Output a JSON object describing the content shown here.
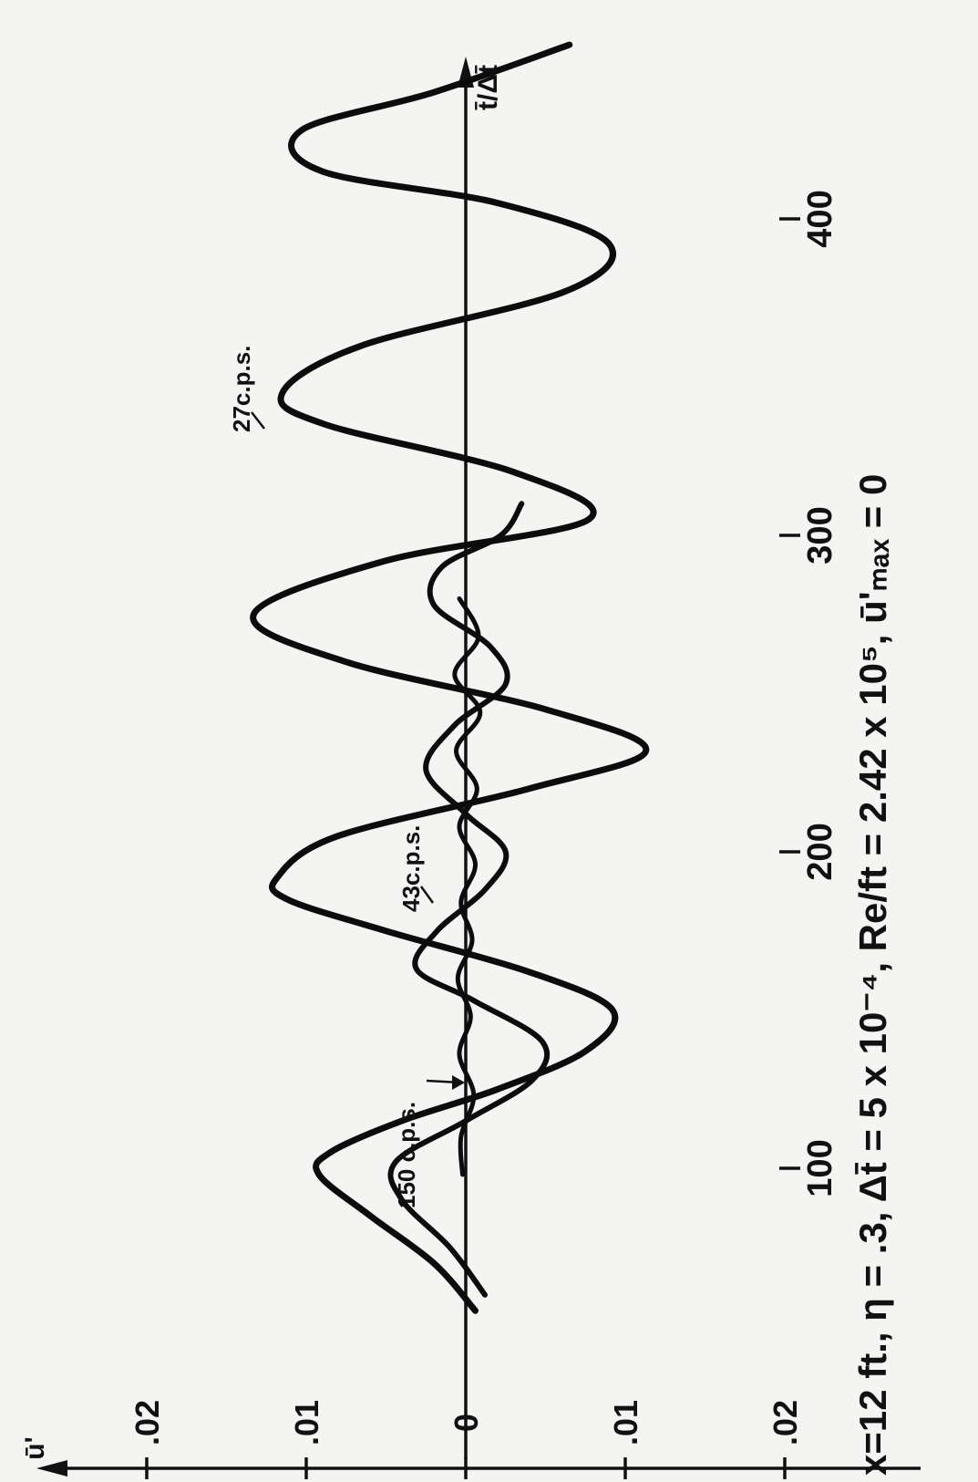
{
  "chart_data": {
    "type": "line",
    "orientation": "rotated-90-ccw",
    "title": "",
    "xlabel": "t̄/Δt̄",
    "ylabel": "ū'",
    "xlim": [
      0,
      480
    ],
    "ylim": [
      -0.02,
      0.02
    ],
    "x_ticks": [
      {
        "value": 100,
        "label": "100"
      },
      {
        "value": 200,
        "label": "200"
      },
      {
        "value": 300,
        "label": "300"
      },
      {
        "value": 400,
        "label": "400"
      }
    ],
    "y_ticks": [
      {
        "value": 0.02,
        "label": ".02"
      },
      {
        "value": 0.01,
        "label": ".01"
      },
      {
        "value": 0.0,
        "label": "0"
      },
      {
        "value": -0.01,
        "label": ".01"
      },
      {
        "value": -0.02,
        "label": ".02"
      }
    ],
    "caption": "x=12 ft.,  η = .3,  Δt̄ = 5 x 10⁻⁴,  Re/ft = 2.42 x 10⁵,  ū'ₘₐₓ = 0",
    "series": [
      {
        "name": "27c.p.s.",
        "x": [
          55,
          70,
          85,
          98,
          105,
          115,
          125,
          137,
          150,
          162,
          175,
          185,
          192,
          205,
          220,
          232,
          245,
          260,
          275,
          292,
          305,
          320,
          335,
          345,
          360,
          377,
          392,
          405,
          415,
          428,
          440,
          455
        ],
        "y": [
          -0.0006,
          0.002,
          0.006,
          0.0092,
          0.0085,
          0.004,
          -0.002,
          -0.0075,
          -0.0092,
          -0.004,
          0.005,
          0.0112,
          0.0118,
          0.008,
          -0.004,
          -0.0113,
          -0.005,
          0.0075,
          0.0133,
          0.005,
          -0.0077,
          -0.003,
          0.0088,
          0.0115,
          0.0065,
          -0.0062,
          -0.009,
          -0.002,
          0.009,
          0.0103,
          0.002,
          -0.0065
        ]
      },
      {
        "name": "43c.p.s.",
        "x": [
          60,
          75,
          90,
          102,
          115,
          128,
          140,
          153,
          163,
          175,
          188,
          200,
          212,
          226,
          240,
          253,
          265,
          278,
          290,
          300,
          310
        ],
        "y": [
          -0.0012,
          0.001,
          0.004,
          0.0044,
          0.0,
          -0.0042,
          -0.0048,
          -0.0005,
          0.0031,
          0.0018,
          -0.0012,
          -0.0025,
          0.0,
          0.0025,
          0.0007,
          -0.0025,
          -0.0015,
          0.002,
          0.0015,
          -0.0022,
          -0.0035
        ]
      },
      {
        "name": "150 c.p.s.",
        "x": [
          98,
          110,
          123,
          136,
          148,
          160,
          172,
          184,
          196,
          208,
          220,
          232,
          244,
          256,
          268,
          280
        ],
        "y": [
          0.0002,
          0.0003,
          -0.0005,
          0.0004,
          -0.0003,
          0.0005,
          -0.0004,
          0.0003,
          -0.0006,
          0.0004,
          -0.0007,
          0.0006,
          -0.0009,
          0.0007,
          -0.0008,
          0.0004
        ]
      }
    ]
  }
}
